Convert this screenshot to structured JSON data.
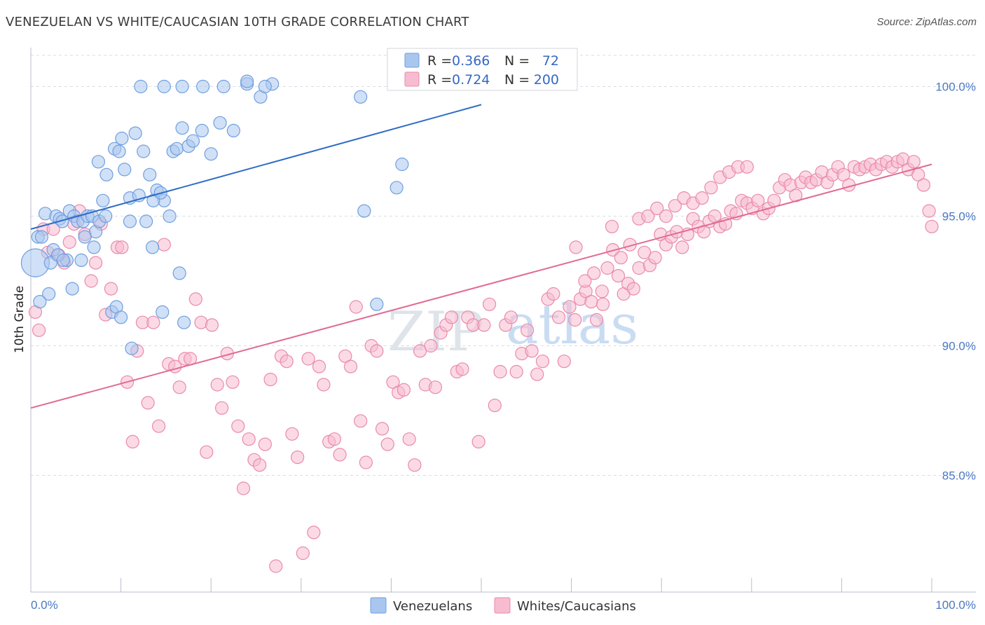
{
  "title": "VENEZUELAN VS WHITE/CAUCASIAN 10TH GRADE CORRELATION CHART",
  "source": "Source: ZipAtlas.com",
  "watermark": {
    "zip": "ZIP",
    "atlas": "atlas"
  },
  "colors": {
    "blue_fill": "#a9c6ee",
    "blue_stroke": "#6f9fe0",
    "blue_line": "#2f6cc7",
    "pink_fill": "#f7bcd0",
    "pink_stroke": "#e98aab",
    "pink_line": "#e06a93",
    "tick_label": "#4a78c2",
    "grid": "#d8dde6"
  },
  "chart_data": {
    "type": "scatter",
    "title": "VENEZUELAN VS WHITE/CAUCASIAN 10TH GRADE CORRELATION CHART",
    "xlabel": "",
    "ylabel": "10th Grade",
    "xlim": [
      0,
      100
    ],
    "ylim": [
      80.5,
      101.5
    ],
    "x_tick_labels": {
      "left": "0.0%",
      "right": "100.0%"
    },
    "y_ticks": [
      {
        "value": 85,
        "label": "85.0%"
      },
      {
        "value": 90,
        "label": "90.0%"
      },
      {
        "value": 95,
        "label": "95.0%"
      },
      {
        "value": 100,
        "label": "100.0%"
      }
    ],
    "grid": "horizontal-dashed",
    "legend_position": "top-center",
    "legend": [
      {
        "name": "Venezuelans",
        "r_label": "R =",
        "r_value": "0.366",
        "n_label": "N =",
        "n_value": "72"
      },
      {
        "name": "Whites/Caucasians",
        "r_label": "R =",
        "r_value": "0.724",
        "n_label": "N =",
        "n_value": "200"
      }
    ],
    "series": [
      {
        "name": "Venezuelans",
        "trendline": [
          [
            0,
            94.5
          ],
          [
            50,
            99.3
          ]
        ],
        "points": [
          [
            0.5,
            93.2
          ],
          [
            0.8,
            94.2
          ],
          [
            1.2,
            94.2
          ],
          [
            1.6,
            95.1
          ],
          [
            2.2,
            93.2
          ],
          [
            2.5,
            93.7
          ],
          [
            2.8,
            95.0
          ],
          [
            3.2,
            94.9
          ],
          [
            3.5,
            94.8
          ],
          [
            4.0,
            93.3
          ],
          [
            4.3,
            95.2
          ],
          [
            4.8,
            95.0
          ],
          [
            5.2,
            94.8
          ],
          [
            5.8,
            94.8
          ],
          [
            6.3,
            95.0
          ],
          [
            6.8,
            95.0
          ],
          [
            7.2,
            94.4
          ],
          [
            7.6,
            94.8
          ],
          [
            8.0,
            95.6
          ],
          [
            8.3,
            95.0
          ],
          [
            3.0,
            93.5
          ],
          [
            3.6,
            93.3
          ],
          [
            4.6,
            92.2
          ],
          [
            5.6,
            93.3
          ],
          [
            6.0,
            94.2
          ],
          [
            7.0,
            93.8
          ],
          [
            2.0,
            92.0
          ],
          [
            1.0,
            91.7
          ],
          [
            9.0,
            91.3
          ],
          [
            9.5,
            91.5
          ],
          [
            10.0,
            91.1
          ],
          [
            11.2,
            89.9
          ],
          [
            11.0,
            94.8
          ],
          [
            13.5,
            93.8
          ],
          [
            14.6,
            91.3
          ],
          [
            16.5,
            92.8
          ],
          [
            17.0,
            90.9
          ],
          [
            7.5,
            97.1
          ],
          [
            8.4,
            96.6
          ],
          [
            9.3,
            97.6
          ],
          [
            10.1,
            98.0
          ],
          [
            11.6,
            98.2
          ],
          [
            12.5,
            97.5
          ],
          [
            13.2,
            96.6
          ],
          [
            14.0,
            96.0
          ],
          [
            14.8,
            95.6
          ],
          [
            15.4,
            95.0
          ],
          [
            9.8,
            97.5
          ],
          [
            10.4,
            96.8
          ],
          [
            11.0,
            95.7
          ],
          [
            12.0,
            95.8
          ],
          [
            12.8,
            94.8
          ],
          [
            13.6,
            95.6
          ],
          [
            14.4,
            95.9
          ],
          [
            15.8,
            97.5
          ],
          [
            16.2,
            97.6
          ],
          [
            16.8,
            98.4
          ],
          [
            17.5,
            97.7
          ],
          [
            18.0,
            97.9
          ],
          [
            19.0,
            98.3
          ],
          [
            20.0,
            97.4
          ],
          [
            21.0,
            98.6
          ],
          [
            22.5,
            98.3
          ],
          [
            24.0,
            100.1
          ],
          [
            25.5,
            99.6
          ],
          [
            26.8,
            100.1
          ],
          [
            12.2,
            100.0
          ],
          [
            14.8,
            100.0
          ],
          [
            16.8,
            100.0
          ],
          [
            19.1,
            100.0
          ],
          [
            21.4,
            100.0
          ],
          [
            24.0,
            100.2
          ],
          [
            26.0,
            100.0
          ],
          [
            36.6,
            99.6
          ],
          [
            37.0,
            95.2
          ],
          [
            38.4,
            91.6
          ],
          [
            40.6,
            96.1
          ],
          [
            41.2,
            97.0
          ]
        ],
        "size_note": "one enlarged point at left edge"
      },
      {
        "name": "Whites/Caucasians",
        "trendline": [
          [
            0,
            87.6
          ],
          [
            100,
            97.0
          ]
        ],
        "points": [
          [
            0.5,
            91.3
          ],
          [
            0.9,
            90.6
          ],
          [
            1.4,
            94.5
          ],
          [
            1.9,
            93.6
          ],
          [
            2.5,
            94.5
          ],
          [
            3.1,
            93.5
          ],
          [
            3.7,
            93.2
          ],
          [
            4.3,
            94.0
          ],
          [
            4.8,
            94.7
          ],
          [
            5.4,
            95.2
          ],
          [
            6.0,
            94.3
          ],
          [
            6.7,
            92.5
          ],
          [
            7.2,
            93.2
          ],
          [
            7.8,
            94.7
          ],
          [
            8.3,
            91.2
          ],
          [
            8.9,
            92.2
          ],
          [
            9.6,
            93.8
          ],
          [
            10.1,
            93.8
          ],
          [
            10.7,
            88.6
          ],
          [
            11.3,
            86.3
          ],
          [
            11.8,
            89.8
          ],
          [
            12.4,
            90.9
          ],
          [
            13.0,
            87.8
          ],
          [
            13.6,
            90.9
          ],
          [
            14.2,
            86.9
          ],
          [
            14.8,
            93.9
          ],
          [
            15.3,
            89.3
          ],
          [
            16.0,
            89.2
          ],
          [
            16.5,
            88.4
          ],
          [
            17.1,
            89.5
          ],
          [
            17.7,
            89.5
          ],
          [
            18.3,
            91.8
          ],
          [
            18.9,
            90.9
          ],
          [
            19.5,
            85.9
          ],
          [
            20.1,
            90.8
          ],
          [
            20.7,
            88.5
          ],
          [
            21.2,
            87.6
          ],
          [
            21.8,
            89.7
          ],
          [
            22.4,
            88.6
          ],
          [
            23.0,
            86.9
          ],
          [
            23.6,
            84.5
          ],
          [
            24.2,
            86.4
          ],
          [
            24.8,
            85.6
          ],
          [
            25.4,
            85.4
          ],
          [
            26.0,
            86.2
          ],
          [
            26.6,
            88.7
          ],
          [
            27.2,
            81.5
          ],
          [
            27.8,
            89.6
          ],
          [
            28.4,
            89.4
          ],
          [
            29.0,
            86.6
          ],
          [
            29.6,
            85.7
          ],
          [
            30.2,
            82.0
          ],
          [
            30.8,
            89.5
          ],
          [
            31.4,
            82.8
          ],
          [
            32.0,
            89.2
          ],
          [
            32.5,
            88.5
          ],
          [
            33.1,
            86.3
          ],
          [
            33.7,
            86.4
          ],
          [
            34.3,
            85.8
          ],
          [
            34.9,
            89.6
          ],
          [
            35.5,
            89.2
          ],
          [
            36.1,
            91.5
          ],
          [
            36.6,
            87.1
          ],
          [
            37.2,
            85.5
          ],
          [
            37.8,
            90.0
          ],
          [
            38.4,
            89.8
          ],
          [
            39.0,
            86.8
          ],
          [
            39.6,
            86.2
          ],
          [
            40.2,
            88.6
          ],
          [
            40.8,
            88.2
          ],
          [
            41.4,
            88.3
          ],
          [
            42.0,
            86.4
          ],
          [
            42.6,
            85.4
          ],
          [
            43.2,
            89.8
          ],
          [
            43.8,
            88.5
          ],
          [
            44.4,
            90.0
          ],
          [
            44.9,
            88.4
          ],
          [
            45.5,
            90.5
          ],
          [
            46.1,
            90.8
          ],
          [
            46.7,
            91.1
          ],
          [
            47.3,
            89.0
          ],
          [
            47.9,
            89.1
          ],
          [
            48.5,
            91.1
          ],
          [
            49.1,
            90.8
          ],
          [
            49.7,
            86.3
          ],
          [
            50.3,
            90.8
          ],
          [
            50.9,
            91.6
          ],
          [
            51.5,
            87.7
          ],
          [
            52.1,
            89.0
          ],
          [
            52.7,
            90.8
          ],
          [
            53.3,
            91.1
          ],
          [
            53.9,
            89.0
          ],
          [
            54.5,
            89.7
          ],
          [
            55.1,
            90.6
          ],
          [
            55.6,
            89.8
          ],
          [
            56.2,
            88.9
          ],
          [
            56.8,
            89.4
          ],
          [
            57.4,
            91.8
          ],
          [
            58.0,
            92.0
          ],
          [
            58.6,
            91.1
          ],
          [
            59.2,
            89.4
          ],
          [
            59.8,
            91.5
          ],
          [
            60.4,
            91.0
          ],
          [
            61.0,
            91.8
          ],
          [
            61.6,
            92.1
          ],
          [
            62.2,
            91.7
          ],
          [
            62.8,
            91.0
          ],
          [
            63.4,
            92.1
          ],
          [
            64.0,
            93.0
          ],
          [
            64.6,
            93.7
          ],
          [
            65.2,
            92.7
          ],
          [
            65.8,
            92.0
          ],
          [
            66.3,
            92.4
          ],
          [
            66.9,
            92.2
          ],
          [
            67.5,
            93.0
          ],
          [
            68.1,
            93.6
          ],
          [
            68.7,
            93.1
          ],
          [
            69.3,
            93.4
          ],
          [
            69.9,
            94.3
          ],
          [
            70.5,
            93.9
          ],
          [
            71.1,
            94.2
          ],
          [
            71.7,
            94.4
          ],
          [
            72.3,
            93.8
          ],
          [
            72.9,
            94.3
          ],
          [
            73.5,
            94.9
          ],
          [
            74.1,
            94.6
          ],
          [
            74.7,
            94.4
          ],
          [
            75.3,
            94.8
          ],
          [
            75.9,
            95.0
          ],
          [
            76.5,
            94.6
          ],
          [
            77.1,
            94.7
          ],
          [
            77.7,
            95.2
          ],
          [
            78.3,
            95.1
          ],
          [
            78.9,
            95.6
          ],
          [
            79.5,
            95.5
          ],
          [
            80.1,
            95.3
          ],
          [
            80.7,
            95.6
          ],
          [
            81.3,
            95.1
          ],
          [
            81.9,
            95.3
          ],
          [
            82.5,
            95.6
          ],
          [
            83.1,
            96.1
          ],
          [
            83.7,
            96.4
          ],
          [
            84.3,
            96.2
          ],
          [
            84.9,
            95.8
          ],
          [
            85.5,
            96.3
          ],
          [
            86.0,
            96.5
          ],
          [
            86.6,
            96.3
          ],
          [
            87.2,
            96.4
          ],
          [
            87.8,
            96.7
          ],
          [
            88.4,
            96.3
          ],
          [
            89.0,
            96.6
          ],
          [
            89.6,
            96.9
          ],
          [
            90.2,
            96.6
          ],
          [
            90.8,
            96.2
          ],
          [
            91.4,
            96.9
          ],
          [
            92.0,
            96.8
          ],
          [
            92.6,
            96.9
          ],
          [
            93.2,
            97.0
          ],
          [
            93.8,
            96.8
          ],
          [
            94.4,
            97.0
          ],
          [
            95.0,
            97.1
          ],
          [
            95.6,
            96.9
          ],
          [
            96.2,
            97.1
          ],
          [
            96.8,
            97.2
          ],
          [
            97.4,
            96.8
          ],
          [
            98.0,
            97.1
          ],
          [
            98.5,
            96.6
          ],
          [
            99.1,
            96.2
          ],
          [
            99.7,
            95.2
          ],
          [
            100.0,
            94.6
          ],
          [
            60.5,
            93.8
          ],
          [
            61.5,
            92.5
          ],
          [
            62.5,
            92.8
          ],
          [
            63.5,
            91.6
          ],
          [
            64.5,
            94.6
          ],
          [
            65.5,
            93.4
          ],
          [
            66.5,
            93.9
          ],
          [
            67.5,
            94.9
          ],
          [
            68.5,
            95.0
          ],
          [
            69.5,
            95.3
          ],
          [
            70.5,
            95.0
          ],
          [
            71.5,
            95.4
          ],
          [
            72.5,
            95.7
          ],
          [
            73.5,
            95.5
          ],
          [
            74.5,
            95.7
          ],
          [
            75.5,
            96.1
          ],
          [
            76.5,
            96.5
          ],
          [
            77.5,
            96.7
          ],
          [
            78.5,
            96.9
          ],
          [
            79.5,
            96.9
          ]
        ]
      }
    ]
  }
}
